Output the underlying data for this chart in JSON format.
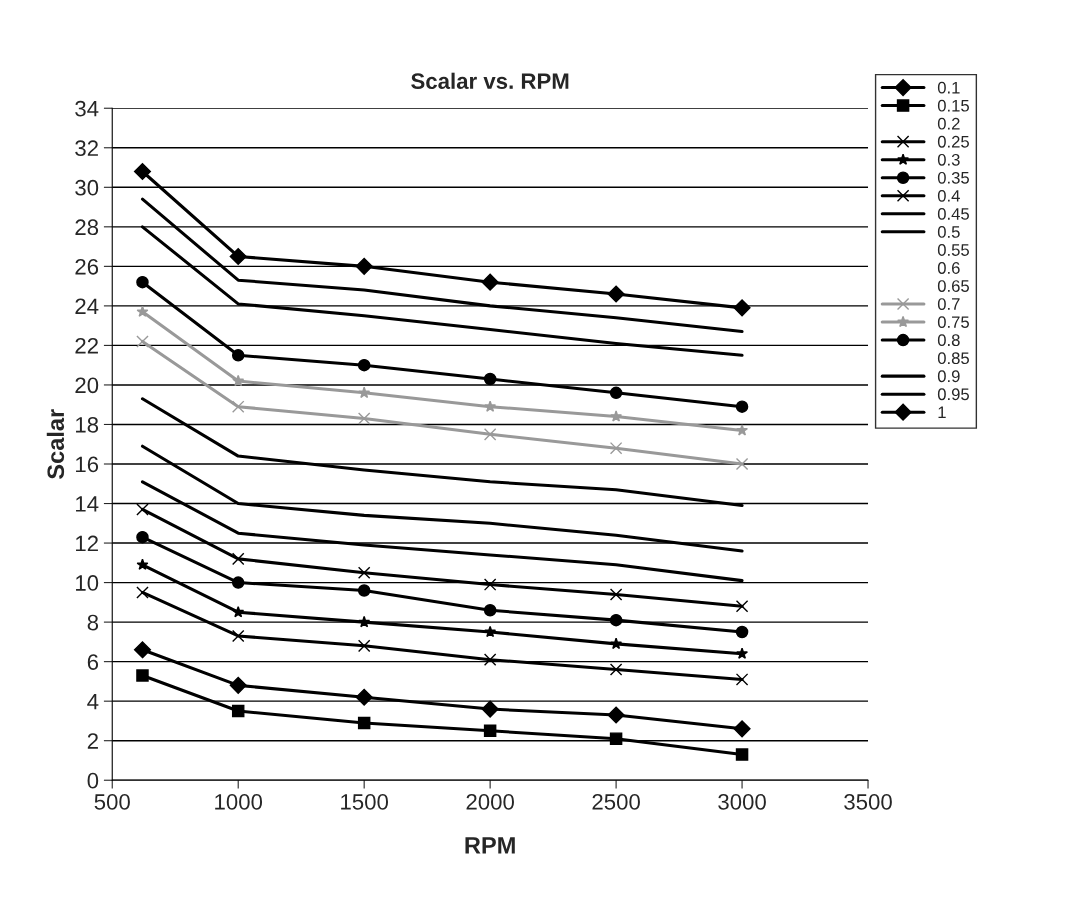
{
  "chart_data": {
    "type": "line",
    "title": "Scalar vs. RPM",
    "xlabel": "RPM",
    "ylabel": "Scalar",
    "xlim": [
      500,
      3500
    ],
    "xticks": [
      500,
      1000,
      1500,
      2000,
      2500,
      3000,
      3500
    ],
    "ylim": [
      0,
      34
    ],
    "yticks": [
      0,
      2,
      4,
      6,
      8,
      10,
      12,
      14,
      16,
      18,
      20,
      22,
      24,
      26,
      28,
      30,
      32,
      34
    ],
    "grid": "y",
    "legend": "top right",
    "x": [
      620,
      1000,
      1500,
      2000,
      2500,
      3000
    ],
    "series": [
      {
        "name": "0.1",
        "color": "#000000",
        "marker": "diamond",
        "values": [
          6.6,
          4.8,
          4.2,
          3.6,
          3.3,
          2.6
        ]
      },
      {
        "name": "0.15",
        "color": "#000000",
        "marker": "square",
        "values": [
          5.3,
          3.5,
          2.9,
          2.5,
          2.1,
          1.3
        ]
      },
      {
        "name": "0.2",
        "marker": "none",
        "values": [
          null,
          null,
          null,
          null,
          null,
          null
        ]
      },
      {
        "name": "0.25",
        "color": "#000000",
        "marker": "cross",
        "values": [
          9.5,
          7.3,
          6.8,
          6.1,
          5.6,
          5.1
        ]
      },
      {
        "name": "0.3",
        "color": "#000000",
        "marker": "star",
        "values": [
          10.9,
          8.5,
          8.0,
          7.5,
          6.9,
          6.4
        ]
      },
      {
        "name": "0.35",
        "color": "#000000",
        "marker": "circle",
        "values": [
          12.3,
          10.0,
          9.6,
          8.6,
          8.1,
          7.5
        ]
      },
      {
        "name": "0.4",
        "color": "#000000",
        "marker": "cross",
        "values": [
          13.7,
          11.2,
          10.5,
          9.9,
          9.4,
          8.8
        ]
      },
      {
        "name": "0.45",
        "color": "#000000",
        "marker": "none",
        "values": [
          15.1,
          12.5,
          11.9,
          11.4,
          10.9,
          10.1
        ]
      },
      {
        "name": "0.5",
        "color": "#000000",
        "marker": "none",
        "values": [
          16.9,
          14.0,
          13.4,
          13.0,
          12.4,
          11.6
        ]
      },
      {
        "name": "0.55",
        "marker": "none",
        "values": [
          null,
          null,
          null,
          null,
          null,
          null
        ]
      },
      {
        "name": "0.6",
        "marker": "none",
        "values": [
          null,
          null,
          null,
          null,
          null,
          null
        ]
      },
      {
        "name": "0.65",
        "marker": "none",
        "values": [
          null,
          null,
          null,
          null,
          null,
          null
        ]
      },
      {
        "name": "0.7",
        "color": "#999999",
        "marker": "cross",
        "values": [
          22.2,
          18.9,
          18.3,
          17.5,
          16.8,
          16.0
        ]
      },
      {
        "name": "0.75",
        "color": "#999999",
        "marker": "star",
        "values": [
          23.7,
          20.2,
          19.6,
          18.9,
          18.4,
          17.7
        ]
      },
      {
        "name": "0.8",
        "color": "#000000",
        "marker": "circle",
        "values": [
          25.2,
          21.5,
          21.0,
          20.3,
          19.6,
          18.9
        ]
      },
      {
        "name": "0.85",
        "marker": "none",
        "values": [
          null,
          null,
          null,
          null,
          null,
          null
        ]
      },
      {
        "name": "0.9",
        "color": "#000000",
        "marker": "none",
        "values": [
          28.0,
          24.1,
          23.5,
          22.8,
          22.1,
          21.5
        ]
      },
      {
        "name": "0.95",
        "color": "#000000",
        "marker": "none",
        "values": [
          29.4,
          25.3,
          24.8,
          24.0,
          23.4,
          22.7
        ]
      },
      {
        "name": "1",
        "color": "#000000",
        "marker": "diamond",
        "values": [
          30.8,
          26.5,
          26.0,
          25.2,
          24.6,
          23.9
        ]
      },
      {
        "color": "#000000",
        "marker": "none",
        "values": [
          19.3,
          16.4,
          15.7,
          15.1,
          14.7,
          13.9
        ]
      }
    ]
  }
}
